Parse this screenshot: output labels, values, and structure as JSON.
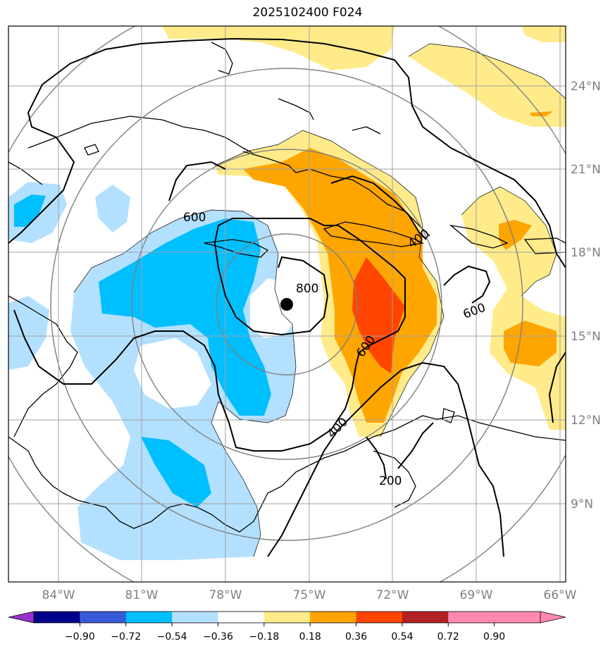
{
  "title": "2025102400 F024",
  "lon_labels": [
    "84°W",
    "81°W",
    "78°W",
    "75°W",
    "72°W",
    "69°W",
    "66°W"
  ],
  "lat_labels": [
    "24°N",
    "21°N",
    "18°N",
    "15°N",
    "12°N",
    "9°N"
  ],
  "contour_labels": [
    "600",
    "800",
    "400",
    "600",
    "600",
    "400",
    "200"
  ],
  "colorbar": {
    "labels": [
      "−0.90",
      "−0.72",
      "−0.54",
      "−0.36",
      "−0.18",
      "0.18",
      "0.36",
      "0.54",
      "0.72",
      "0.90"
    ],
    "colors": [
      "#9932cc",
      "#00008b",
      "#3a5bd9",
      "#00bfff",
      "#b3e0ff",
      "#ffffff",
      "#ffeb8a",
      "#ffa500",
      "#ff4500",
      "#b22222",
      "#ff88b0",
      "#ff88b0"
    ]
  },
  "center_marker": "storm-center-dot"
}
